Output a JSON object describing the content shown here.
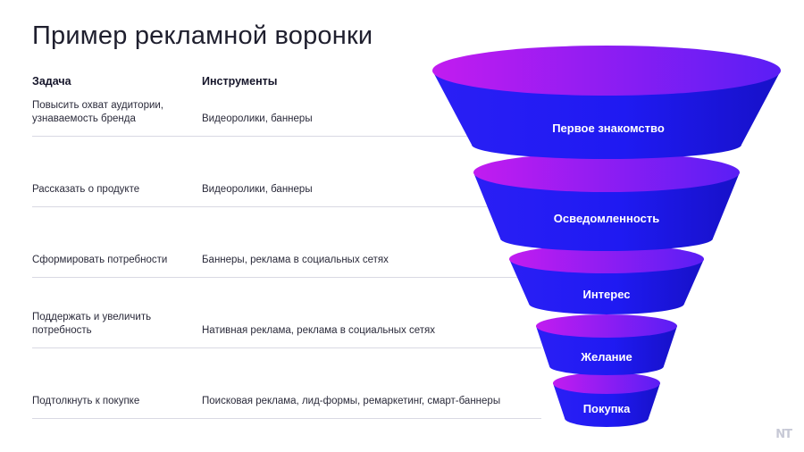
{
  "title": "Пример рекламной воронки",
  "columns": {
    "task": "Задача",
    "tools": "Инструменты"
  },
  "rows": [
    {
      "task": "Повысить охват аудитории, узнаваемость бренда",
      "tools": "Видеоролики, баннеры"
    },
    {
      "task": "Рассказать о продукте",
      "tools": "Видеоролики, баннеры"
    },
    {
      "task": "Сформировать потребности",
      "tools": "Баннеры, реклама в социальных сетях"
    },
    {
      "task": "Поддержать и увеличить потребность",
      "tools": "Нативная реклама, реклама в социальных сетях"
    },
    {
      "task": "Подтолкнуть к покупке",
      "tools": "Поисковая реклама, лид-формы, ремаркетинг, смарт-баннеры"
    }
  ],
  "funnel": {
    "stages": [
      "Первое знакомство",
      "Осведомленность",
      "Интерес",
      "Желание",
      "Покупка"
    ],
    "colors": {
      "top_start": "#c21cf0",
      "top_end": "#5a1ef5",
      "body": "#1f1af2",
      "body_dark": "#1711c8"
    }
  },
  "logo": "NT"
}
